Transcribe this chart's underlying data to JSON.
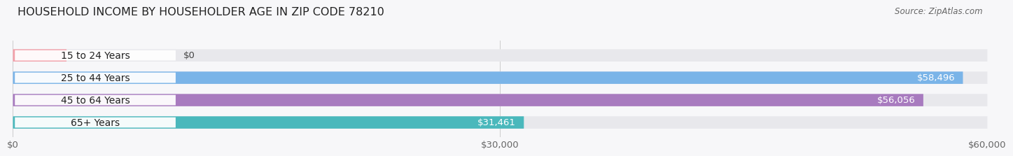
{
  "title": "HOUSEHOLD INCOME BY HOUSEHOLDER AGE IN ZIP CODE 78210",
  "source": "Source: ZipAtlas.com",
  "categories": [
    "15 to 24 Years",
    "25 to 44 Years",
    "45 to 64 Years",
    "65+ Years"
  ],
  "values": [
    0,
    58496,
    56056,
    31461
  ],
  "value_labels": [
    "$0",
    "$58,496",
    "$56,056",
    "$31,461"
  ],
  "bar_colors": [
    "#f2a0aa",
    "#7ab4e8",
    "#a87bbf",
    "#4ab8bc"
  ],
  "bar_background": "#e8e8ec",
  "xlim": [
    0,
    60000
  ],
  "xticks": [
    0,
    30000,
    60000
  ],
  "xticklabels": [
    "$0",
    "$30,000",
    "$60,000"
  ],
  "title_fontsize": 11.5,
  "source_fontsize": 8.5,
  "label_fontsize": 10,
  "value_fontsize": 9.5,
  "tick_fontsize": 9.5,
  "background_color": "#f7f7f9",
  "bar_height": 0.55,
  "fig_width": 14.06,
  "fig_height": 2.33
}
